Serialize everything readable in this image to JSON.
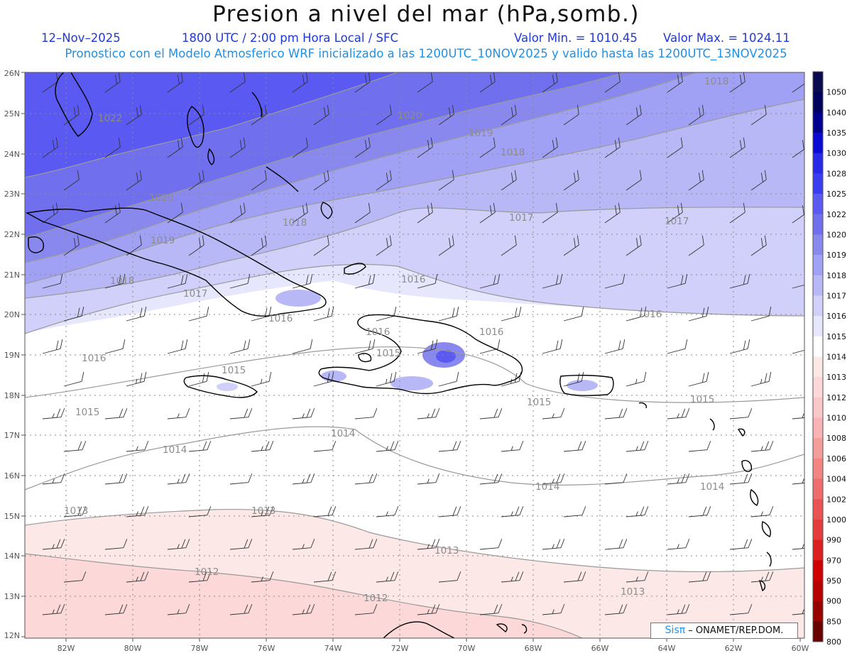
{
  "header": {
    "title": "Presion a nivel del mar (hPa,somb.)",
    "date": "12–Nov–2025",
    "time": "1800 UTC / 2:00 pm Hora Local / SFC",
    "vmin": "Valor Min. = 1010.45",
    "vmax": "Valor Max. = 1024.11",
    "forecast": "Pronostico con el Modelo Atmosferico WRF inicializado a las 1200UTC_10NOV2025 y valido hasta las  1200UTC_13NOV2025"
  },
  "credit": {
    "brand": "Sisπ",
    "text": " – ONAMET/REP.DOM."
  },
  "axes": {
    "lat_labels": [
      "26N",
      "25N",
      "24N",
      "23N",
      "22N",
      "21N",
      "20N",
      "19N",
      "18N",
      "17N",
      "16N",
      "15N",
      "14N",
      "13N",
      "12N"
    ],
    "lon_labels": [
      "82W",
      "80W",
      "78W",
      "76W",
      "74W",
      "72W",
      "70W",
      "68W",
      "66W",
      "64W",
      "62W",
      "60W"
    ]
  },
  "colorbar": {
    "labels": [
      "1050",
      "1040",
      "1035",
      "1030",
      "1028",
      "1025",
      "1022",
      "1020",
      "1019",
      "1018",
      "1017",
      "1016",
      "1015",
      "1014",
      "1013",
      "1012",
      "1010",
      "1008",
      "1006",
      "1004",
      "1002",
      "1000",
      "990",
      "970",
      "950",
      "900",
      "850",
      "800"
    ],
    "colors": [
      "#0a0a50",
      "#00005c",
      "#000090",
      "#0a0ad2",
      "#2828e8",
      "#3c3cf0",
      "#5a5af2",
      "#7070ee",
      "#8888ee",
      "#a0a0f4",
      "#b8b8f6",
      "#d0d0fa",
      "#e6e6fc",
      "#ffffff",
      "#fde8e8",
      "#fcd8d8",
      "#fac8c8",
      "#f8b4b4",
      "#f59c9c",
      "#f28484",
      "#ee6c6c",
      "#ea5454",
      "#e43c3c",
      "#dc2020",
      "#d00000",
      "#b80000",
      "#980000",
      "#680000"
    ]
  },
  "isobars": [
    "1022",
    "1020",
    "1019",
    "1018",
    "1020",
    "1019",
    "1018",
    "1018",
    "1017",
    "1017",
    "1017",
    "1016",
    "1016",
    "1016",
    "1016",
    "1016",
    "1015",
    "1015",
    "1015",
    "1015",
    "1014",
    "1014",
    "1014",
    "1014",
    "1013",
    "1013",
    "1013",
    "1013",
    "1012",
    "1012",
    "1016",
    "1015",
    "1018"
  ]
}
